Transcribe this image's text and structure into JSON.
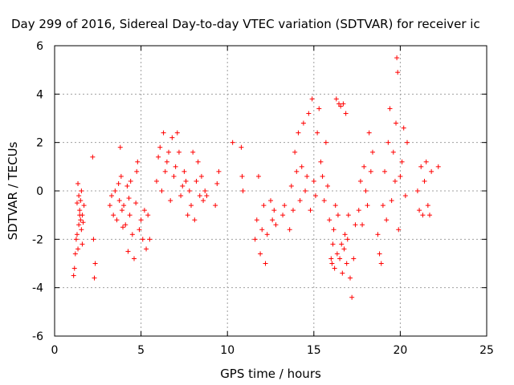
{
  "chart_data": {
    "type": "scatter",
    "title": "Day 299 of 2016, Sidereal Day-to-day VTEC variation (SDTVAR) for receiver ic",
    "xlabel": "GPS time / hours",
    "ylabel": "SDTVAR / TECUs",
    "xlim": [
      0,
      25
    ],
    "ylim": [
      -6,
      6
    ],
    "x_ticks": [
      0,
      5,
      10,
      15,
      20,
      25
    ],
    "y_ticks": [
      -6,
      -4,
      -2,
      0,
      2,
      4,
      6
    ],
    "x_tick_labels": [
      "0",
      "5",
      "10",
      "15",
      "20",
      "25"
    ],
    "y_tick_labels": [
      "-6",
      "-4",
      "-2",
      "0",
      "2",
      "4",
      "6"
    ],
    "grid": true,
    "marker": "plus",
    "color": "#ff0000",
    "series": [
      {
        "x": [
          1.1,
          1.15,
          1.2,
          1.25,
          1.3,
          1.3,
          1.35,
          1.35,
          1.4,
          1.4,
          1.45,
          1.45,
          1.5,
          1.5,
          1.55,
          1.55,
          1.6,
          1.6,
          1.65,
          1.7,
          2.2,
          2.25,
          2.3,
          2.35,
          3.2,
          3.3,
          3.4,
          3.5,
          3.6,
          3.7,
          3.75,
          3.8,
          3.85,
          3.9,
          3.95,
          4.0,
          4.1,
          4.2,
          4.25,
          4.3,
          4.35,
          4.4,
          4.5,
          4.6,
          4.7,
          4.75,
          4.8,
          4.9,
          5.0,
          5.1,
          5.2,
          5.3,
          5.4,
          5.5,
          5.9,
          6.0,
          6.1,
          6.2,
          6.3,
          6.4,
          6.5,
          6.6,
          6.7,
          6.8,
          6.9,
          7.0,
          7.1,
          7.2,
          7.3,
          7.4,
          7.5,
          7.6,
          7.7,
          7.8,
          7.9,
          8.0,
          8.1,
          8.2,
          8.3,
          8.4,
          8.5,
          8.6,
          8.7,
          8.8,
          9.3,
          9.4,
          9.5,
          10.3,
          10.8,
          10.85,
          10.9,
          11.6,
          11.7,
          11.8,
          11.9,
          12.0,
          12.1,
          12.2,
          12.3,
          12.5,
          12.6,
          12.7,
          12.8,
          13.2,
          13.3,
          13.6,
          13.7,
          13.8,
          13.9,
          14.0,
          14.1,
          14.2,
          14.3,
          14.4,
          14.5,
          14.6,
          14.7,
          14.8,
          14.9,
          15.0,
          15.1,
          15.2,
          15.3,
          15.4,
          15.5,
          15.6,
          15.7,
          15.8,
          15.9,
          16.0,
          16.05,
          16.1,
          16.15,
          16.2,
          16.25,
          16.3,
          16.35,
          16.4,
          16.45,
          16.5,
          16.55,
          16.6,
          16.65,
          16.7,
          16.75,
          16.8,
          16.85,
          16.9,
          16.95,
          17.0,
          17.1,
          17.2,
          17.3,
          17.4,
          17.6,
          17.7,
          17.8,
          17.9,
          18.0,
          18.1,
          18.2,
          18.3,
          18.4,
          18.7,
          18.8,
          18.9,
          19.0,
          19.1,
          19.2,
          19.3,
          19.4,
          19.5,
          19.6,
          19.7,
          19.75,
          19.8,
          19.85,
          19.9,
          20.0,
          20.1,
          20.2,
          20.3,
          20.4,
          21.0,
          21.1,
          21.2,
          21.3,
          21.4,
          21.5,
          21.6,
          21.7,
          21.8,
          22.2
        ],
        "y": [
          -3.5,
          -3.2,
          -2.6,
          -2.0,
          -0.5,
          -1.8,
          0.3,
          -2.4,
          -0.2,
          -1.4,
          -1.0,
          -0.8,
          -0.4,
          -1.2,
          -1.6,
          0.0,
          -2.2,
          -1.0,
          -1.3,
          -0.6,
          1.4,
          -2.0,
          -3.6,
          -3.0,
          -0.6,
          -0.2,
          -1.0,
          0.0,
          -1.2,
          0.3,
          -0.4,
          1.8,
          0.6,
          -0.8,
          -1.5,
          -0.6,
          -1.4,
          0.2,
          -2.5,
          -0.3,
          -1.0,
          0.4,
          -1.8,
          -2.8,
          -0.5,
          0.8,
          1.2,
          -1.6,
          -1.2,
          -2.0,
          -0.8,
          -2.4,
          -1.0,
          -2.0,
          0.4,
          1.4,
          1.8,
          0.0,
          2.4,
          0.8,
          1.2,
          1.6,
          -0.4,
          2.2,
          0.6,
          1.0,
          2.4,
          1.6,
          -0.2,
          0.2,
          0.8,
          0.4,
          -1.0,
          0.0,
          -0.6,
          1.6,
          -1.2,
          0.4,
          1.2,
          -0.2,
          0.6,
          -0.4,
          0.0,
          -0.2,
          -0.6,
          0.3,
          0.8,
          2.0,
          1.8,
          0.6,
          0.0,
          -2.0,
          -1.2,
          0.6,
          -2.6,
          -1.6,
          -0.6,
          -3.0,
          -1.8,
          -0.4,
          -1.2,
          -0.8,
          -1.4,
          -1.0,
          -0.6,
          -1.6,
          0.2,
          -0.8,
          1.6,
          0.8,
          2.4,
          -0.4,
          1.0,
          2.8,
          0.0,
          0.6,
          3.2,
          -0.8,
          3.8,
          0.4,
          -0.2,
          2.4,
          3.4,
          1.2,
          0.6,
          -0.4,
          2.0,
          0.2,
          -1.2,
          -2.8,
          -3.0,
          -2.2,
          -1.6,
          -3.2,
          -0.6,
          3.8,
          -2.6,
          -1.0,
          3.6,
          -2.8,
          3.5,
          -2.2,
          -3.4,
          3.6,
          -2.4,
          -1.8,
          3.2,
          -3.0,
          -2.0,
          -1.0,
          -3.6,
          -4.4,
          -2.8,
          -1.4,
          -0.8,
          0.4,
          -1.4,
          1.0,
          0.0,
          -0.6,
          2.4,
          0.8,
          1.6,
          -1.8,
          -2.6,
          -3.0,
          -0.6,
          0.8,
          -1.2,
          2.0,
          3.4,
          -0.4,
          1.6,
          0.4,
          2.8,
          5.5,
          4.9,
          -1.6,
          0.6,
          1.2,
          2.6,
          -0.2,
          2.0,
          0.0,
          -0.8,
          1.0,
          -1.0,
          0.4,
          1.2,
          -0.6,
          -1.0,
          0.8,
          1.0
        ]
      }
    ]
  }
}
